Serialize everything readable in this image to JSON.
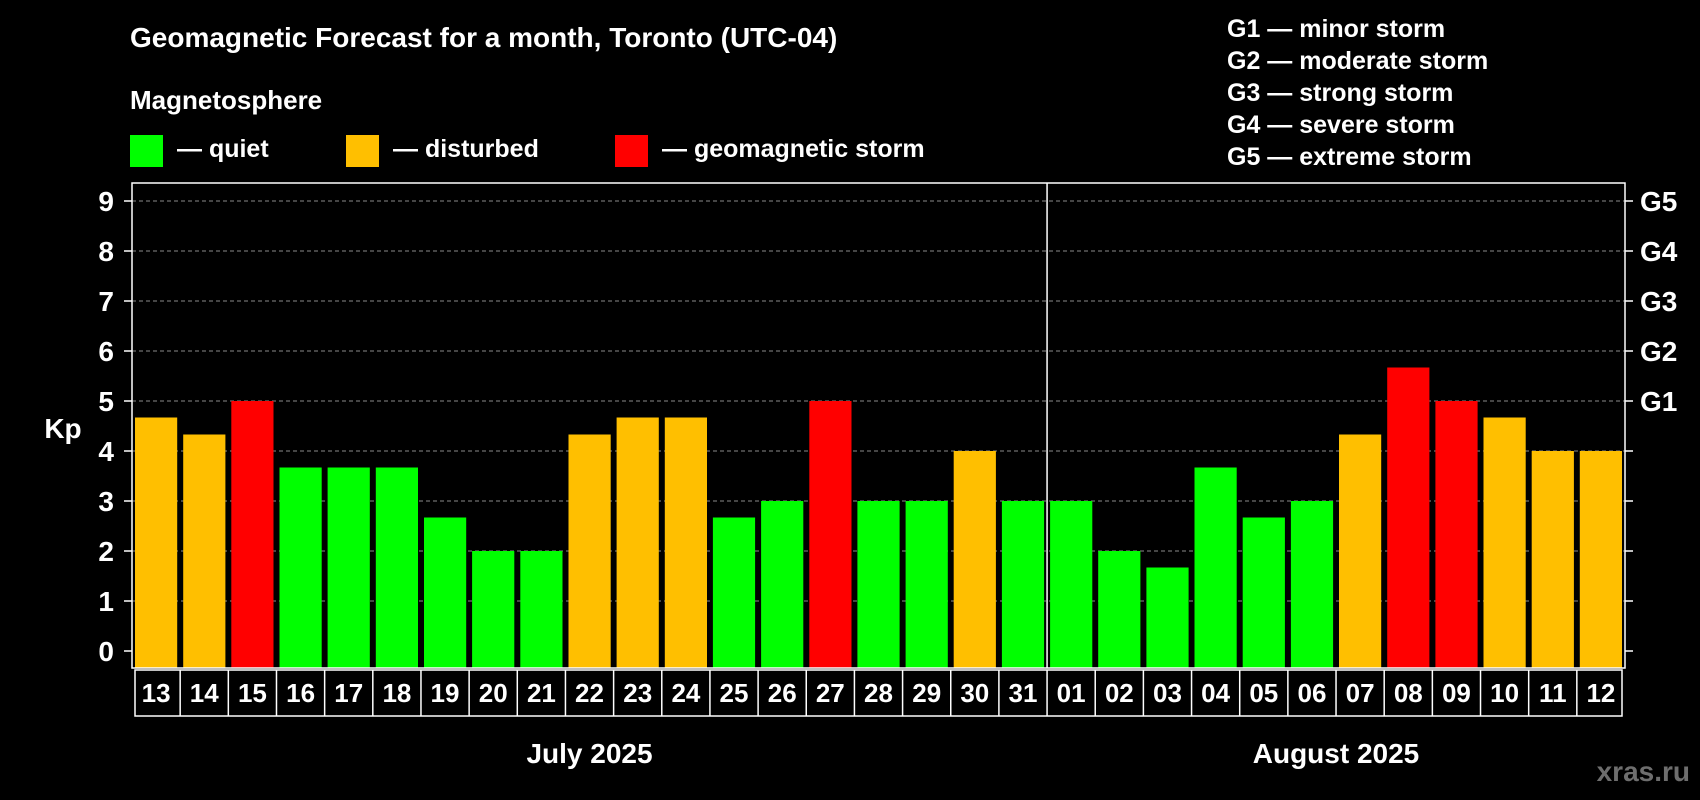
{
  "chart_data": {
    "type": "bar",
    "title": "Geomagnetic Forecast for a month, Toronto (UTC-04)",
    "legend_title": "Magnetosphere",
    "legend": [
      {
        "key": "quiet",
        "label": "— quiet",
        "color": "#00ff00"
      },
      {
        "key": "disturbed",
        "label": "— disturbed",
        "color": "#ffbf00"
      },
      {
        "key": "storm",
        "label": "— geomagnetic storm",
        "color": "#ff0000"
      }
    ],
    "storm_scale": [
      "G1 — minor storm",
      "G2 — moderate storm",
      "G3 — strong storm",
      "G4 — severe storm",
      "G5 — extreme storm"
    ],
    "ylabel": "Kp",
    "ylim": [
      0,
      9
    ],
    "yticks": [
      "0",
      "1",
      "2",
      "3",
      "4",
      "5",
      "6",
      "7",
      "8",
      "9"
    ],
    "right_ticks": [
      {
        "kp": 5,
        "label": "G1"
      },
      {
        "kp": 6,
        "label": "G2"
      },
      {
        "kp": 7,
        "label": "G3"
      },
      {
        "kp": 8,
        "label": "G4"
      },
      {
        "kp": 9,
        "label": "G5"
      }
    ],
    "categories": [
      "13",
      "14",
      "15",
      "16",
      "17",
      "18",
      "19",
      "20",
      "21",
      "22",
      "23",
      "24",
      "25",
      "26",
      "27",
      "28",
      "29",
      "30",
      "31",
      "01",
      "02",
      "03",
      "04",
      "05",
      "06",
      "07",
      "08",
      "09",
      "10",
      "11",
      "12"
    ],
    "values": [
      4.67,
      4.33,
      5,
      3.67,
      3.67,
      3.67,
      2.67,
      2,
      2,
      4.33,
      4.67,
      4.67,
      2.67,
      3,
      5,
      3,
      3,
      4,
      3,
      3,
      2,
      1.67,
      3.67,
      2.67,
      3,
      4.33,
      5.67,
      5,
      4.67,
      4,
      4
    ],
    "levels": [
      "disturbed",
      "disturbed",
      "storm",
      "quiet",
      "quiet",
      "quiet",
      "quiet",
      "quiet",
      "quiet",
      "disturbed",
      "disturbed",
      "disturbed",
      "quiet",
      "quiet",
      "storm",
      "quiet",
      "quiet",
      "disturbed",
      "quiet",
      "quiet",
      "quiet",
      "quiet",
      "quiet",
      "quiet",
      "quiet",
      "disturbed",
      "storm",
      "storm",
      "disturbed",
      "disturbed",
      "disturbed"
    ],
    "months": [
      {
        "label": "July 2025",
        "start": 0,
        "count": 19
      },
      {
        "label": "August 2025",
        "start": 19,
        "count": 12
      }
    ],
    "grid": true,
    "watermark": "xras.ru"
  }
}
